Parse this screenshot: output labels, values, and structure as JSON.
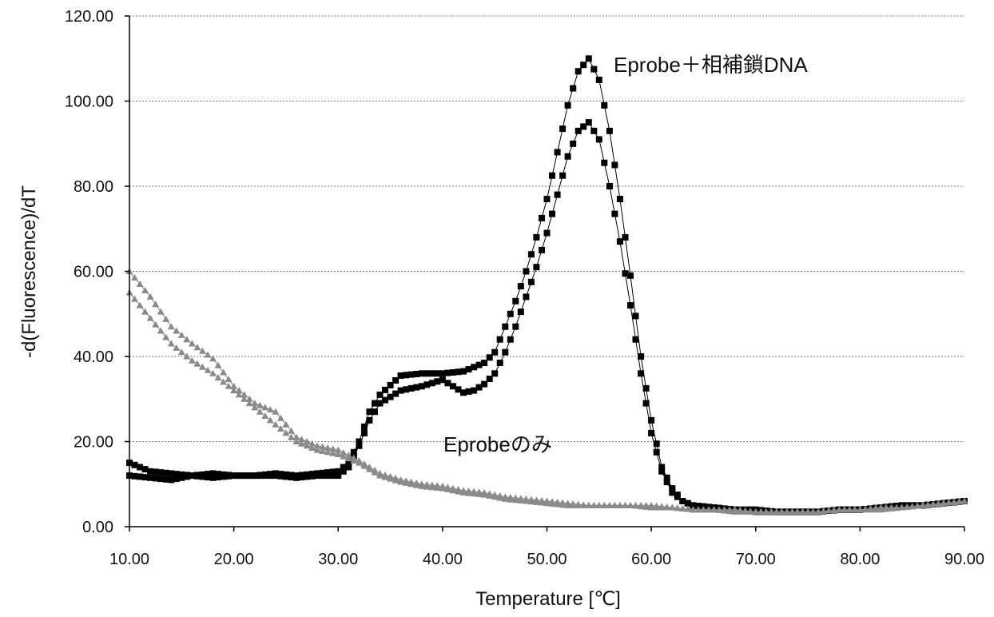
{
  "chart_data": {
    "type": "scatter",
    "xlabel": "Temperature [℃]",
    "ylabel": "-d(Fluorescence)/dT",
    "xlim": [
      10,
      90
    ],
    "ylim": [
      0,
      120
    ],
    "x_ticks": [
      "10.00",
      "20.00",
      "30.00",
      "40.00",
      "50.00",
      "60.00",
      "70.00",
      "80.00",
      "90.00"
    ],
    "y_ticks": [
      "0.00",
      "20.00",
      "40.00",
      "60.00",
      "80.00",
      "100.00",
      "120.00"
    ],
    "grid": "horizontal",
    "annotations": [
      {
        "text": "Eprobe＋相補鎖DNA",
        "x": 52,
        "y": 108
      },
      {
        "text": "Eprobeのみ",
        "x": 42,
        "y": 19
      }
    ],
    "series": [
      {
        "marker": "square",
        "color": "#000000",
        "x": [
          10,
          12,
          14,
          16,
          18,
          20,
          22,
          24,
          26,
          28,
          30,
          31,
          32,
          33,
          34,
          36,
          38,
          40,
          42,
          44,
          45,
          46,
          47,
          48,
          49,
          50,
          51,
          52,
          53,
          54,
          55,
          56,
          57,
          58,
          59,
          60,
          61,
          62,
          63,
          64,
          66,
          68,
          70,
          72,
          74,
          76,
          78,
          80,
          82,
          84,
          86,
          88,
          90
        ],
        "y": [
          15,
          13,
          12.5,
          12,
          12.5,
          12,
          12,
          12.5,
          12,
          12.5,
          13,
          15,
          20,
          27,
          31,
          35.5,
          36,
          36,
          36.5,
          38.5,
          41,
          47,
          53,
          60,
          68,
          77,
          88,
          99,
          107,
          110,
          105,
          93,
          77,
          59,
          40,
          25,
          14,
          9,
          6,
          5,
          4.5,
          4,
          4,
          3.5,
          3.5,
          3.5,
          4,
          4,
          4.5,
          5,
          5,
          5.5,
          6
        ]
      },
      {
        "marker": "square",
        "color": "#000000",
        "x": [
          10,
          12,
          14,
          16,
          18,
          20,
          22,
          24,
          26,
          28,
          30,
          31,
          32,
          33,
          34,
          36,
          38,
          40,
          41,
          42,
          43,
          44,
          45,
          46,
          47,
          48,
          49,
          50,
          51,
          52,
          53,
          54,
          55,
          56,
          57,
          58,
          59,
          60,
          61,
          62,
          63,
          64,
          66,
          68,
          70,
          72,
          74,
          76,
          78,
          80,
          82,
          84,
          86,
          88,
          90
        ],
        "y": [
          12,
          11.5,
          11,
          12,
          11.5,
          12,
          12,
          12,
          11.5,
          12,
          12,
          14,
          19,
          25,
          29,
          32,
          33,
          34.5,
          33,
          31.5,
          32,
          33.5,
          36,
          41,
          47,
          54,
          61,
          69,
          78,
          87,
          93,
          95,
          91,
          80,
          67,
          52,
          36,
          22,
          13,
          8,
          6,
          5,
          4.5,
          4,
          3.5,
          3.5,
          3.5,
          3.5,
          4,
          4,
          4.5,
          5,
          5,
          5.5,
          6
        ]
      },
      {
        "marker": "triangle",
        "color": "#8a8a8a",
        "x": [
          10,
          12,
          14,
          16,
          18,
          20,
          22,
          24,
          26,
          28,
          30,
          32,
          34,
          36,
          38,
          40,
          42,
          44,
          46,
          48,
          50,
          52,
          54,
          56,
          58,
          60,
          62,
          64,
          66,
          68,
          70,
          72,
          74,
          76,
          78,
          80,
          82,
          84,
          86,
          88,
          90
        ],
        "y": [
          60,
          54,
          47,
          43,
          39.5,
          33,
          29,
          27,
          21,
          19,
          18,
          15.5,
          12.5,
          11,
          10,
          9.5,
          8.5,
          8,
          7,
          6.5,
          6,
          5.5,
          5,
          5,
          5,
          5,
          4.5,
          4,
          4,
          4,
          3.5,
          3.5,
          3.5,
          3.5,
          4,
          4,
          4.5,
          4.5,
          5,
          5.5,
          6
        ]
      },
      {
        "marker": "triangle",
        "color": "#8a8a8a",
        "x": [
          10,
          12,
          14,
          16,
          18,
          20,
          22,
          24,
          26,
          28,
          30,
          32,
          34,
          36,
          38,
          40,
          42,
          44,
          46,
          48,
          50,
          52,
          54,
          56,
          58,
          60,
          62,
          64,
          66,
          68,
          70,
          72,
          74,
          76,
          78,
          80,
          82,
          84,
          86,
          88,
          90
        ],
        "y": [
          55,
          49,
          43,
          39,
          36,
          32,
          28,
          24,
          20,
          18,
          17,
          15,
          12,
          10.5,
          9.5,
          9,
          8,
          7.5,
          6.5,
          6,
          5.5,
          5,
          5,
          5,
          5,
          4.5,
          4.5,
          4,
          4,
          3.5,
          3.5,
          3.5,
          3.5,
          3.5,
          4,
          4,
          4,
          4.5,
          5,
          5.5,
          6
        ]
      }
    ]
  }
}
